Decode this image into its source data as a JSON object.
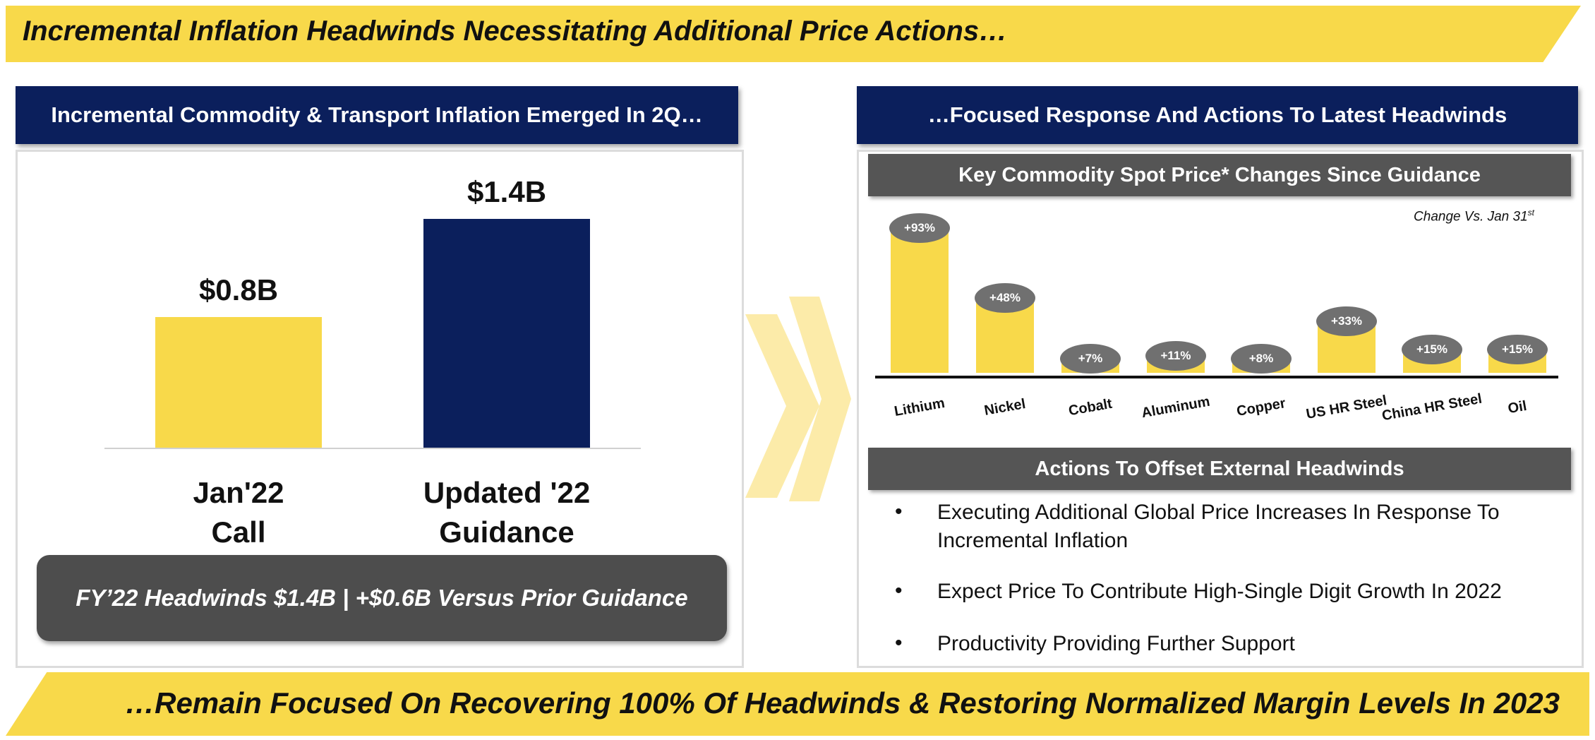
{
  "top_banner": "Incremental Inflation Headwinds Necessitating Additional Price Actions…",
  "bottom_banner": "…Remain Focused On Recovering 100% Of Headwinds & Restoring Normalized Margin Levels In 2023",
  "left_panel": {
    "header": "Incremental Commodity & Transport Inflation Emerged In 2Q…",
    "callout": "FY’22 Headwinds $1.4B | +$0.6B Versus Prior Guidance"
  },
  "right_panel": {
    "header": "…Focused Response And Actions To Latest Headwinds",
    "chart_title": "Key Commodity Spot Price* Changes Since Guidance",
    "chart_note": "Change Vs. Jan 31",
    "chart_note_sup": "st",
    "actions_title": "Actions To Offset External Headwinds",
    "bullet_symbol": "•",
    "bullets": [
      "Executing Additional Global Price Increases In Response To Incremental Inflation",
      "Expect Price To Contribute High-Single Digit Growth In 2022",
      "Productivity Providing Further Support"
    ]
  },
  "colors": {
    "yellow": "#f8d94a",
    "navy": "#0b1f5c",
    "grey": "#4d4d4d",
    "pill": "#707070"
  },
  "chart_data": [
    {
      "type": "bar",
      "categories": [
        "Jan'22\nCall",
        "Updated '22\nGuidance"
      ],
      "values": [
        0.8,
        1.4
      ],
      "labels": [
        "$0.8B",
        "$1.4B"
      ],
      "colors": [
        "#f8d94a",
        "#0b1f5c"
      ],
      "ylim": [
        0,
        1.6
      ]
    },
    {
      "type": "bar",
      "title": "Key Commodity Spot Price* Changes Since Guidance",
      "categories": [
        "Lithium",
        "Nickel",
        "Cobalt",
        "Aluminum",
        "Copper",
        "US HR Steel",
        "China HR Steel",
        "Oil"
      ],
      "values": [
        93,
        48,
        7,
        11,
        8,
        33,
        15,
        15
      ],
      "labels": [
        "+93%",
        "+48%",
        "+7%",
        "+11%",
        "+8%",
        "+33%",
        "+15%",
        "+15%"
      ],
      "unit": "%"
    }
  ]
}
